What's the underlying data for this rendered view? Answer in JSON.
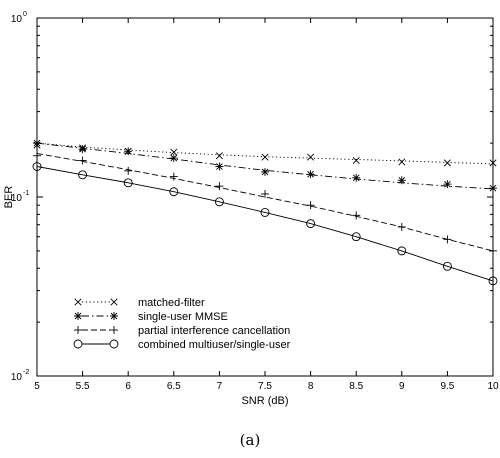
{
  "chart_data": {
    "type": "line",
    "xlabel": "SNR (dB)",
    "ylabel": "BER",
    "caption": "(a)",
    "xlim": [
      5,
      10
    ],
    "ylim": [
      0.01,
      1
    ],
    "yscale": "log",
    "grid": false,
    "legend_position": "lower-left",
    "x_ticks": [
      5,
      5.5,
      6,
      6.5,
      7,
      7.5,
      8,
      8.5,
      9,
      9.5,
      10
    ],
    "x_tick_labels": [
      "5",
      "5.5",
      "6",
      "6.5",
      "7",
      "7.5",
      "8",
      "8.5",
      "9",
      "9.5",
      "10"
    ],
    "y_ticks": [
      {
        "value": 1,
        "base": "10",
        "exp": "0"
      },
      {
        "value": 0.1,
        "base": "10",
        "exp": "-1"
      },
      {
        "value": 0.01,
        "base": "10",
        "exp": "-2"
      }
    ],
    "x": [
      5,
      5.5,
      6,
      6.5,
      7,
      7.5,
      8,
      8.5,
      9,
      9.5,
      10
    ],
    "series": [
      {
        "name": "matched-filter",
        "marker": "x",
        "line_style": "dotted",
        "values": [
          0.2,
          0.19,
          0.183,
          0.177,
          0.172,
          0.168,
          0.165,
          0.162,
          0.159,
          0.156,
          0.153
        ],
        "sim": [
          0.195,
          0.188,
          0.18,
          0.178,
          0.17,
          0.167,
          0.167,
          0.16,
          0.157,
          0.155,
          0.155
        ]
      },
      {
        "name": "single-user MMSE",
        "marker": "asterisk",
        "line_style": "dashdot",
        "values": [
          0.2,
          0.187,
          0.175,
          0.163,
          0.151,
          0.141,
          0.133,
          0.126,
          0.12,
          0.115,
          0.111
        ],
        "sim": [
          0.2,
          0.185,
          0.18,
          0.165,
          0.148,
          0.138,
          0.134,
          0.128,
          0.124,
          0.118,
          0.112
        ]
      },
      {
        "name": "partial interference cancellation",
        "marker": "plus",
        "line_style": "dashed",
        "values": [
          0.175,
          0.158,
          0.142,
          0.127,
          0.113,
          0.1,
          0.089,
          0.078,
          0.068,
          0.058,
          0.05
        ],
        "sim": [
          0.17,
          0.16,
          0.14,
          0.13,
          0.115,
          0.104,
          0.09,
          0.079,
          0.068,
          0.058,
          0.05
        ]
      },
      {
        "name": "combined multiuser/single-user",
        "marker": "circle",
        "line_style": "solid",
        "values": [
          0.148,
          0.133,
          0.12,
          0.107,
          0.094,
          0.082,
          0.071,
          0.06,
          0.05,
          0.041,
          0.034
        ],
        "sim": [
          0.148,
          0.133,
          0.12,
          0.107,
          0.094,
          0.082,
          0.071,
          0.06,
          0.05,
          0.041,
          0.034
        ]
      }
    ]
  }
}
